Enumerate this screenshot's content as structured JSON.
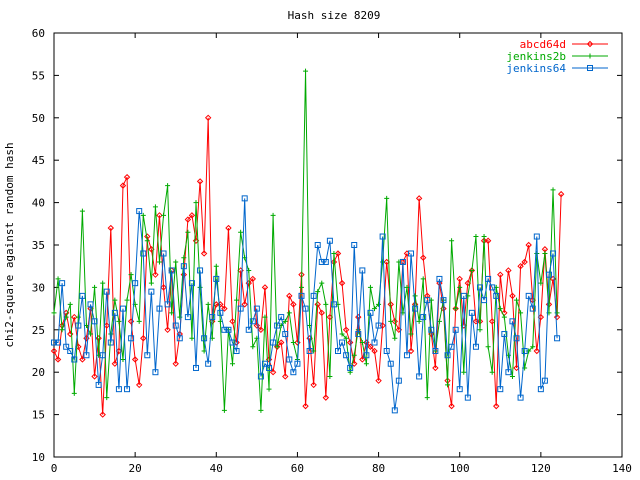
{
  "chart_data": {
    "type": "line",
    "title": "Hash size 8209",
    "xlabel": "",
    "ylabel": "chi2-square against random hash",
    "xlim": [
      0,
      140
    ],
    "ylim": [
      10,
      60
    ],
    "x_ticks": [
      0,
      20,
      40,
      60,
      80,
      100,
      120,
      140
    ],
    "y_ticks": [
      10,
      15,
      20,
      25,
      30,
      35,
      40,
      45,
      50,
      55,
      60
    ],
    "grid": false,
    "legend_position": "top-right",
    "series": [
      {
        "name": "abcd64d",
        "color": "#ff0000",
        "marker": "diamond",
        "values": [
          22.5,
          21.5,
          25.5,
          27.0,
          24.5,
          26.5,
          23.0,
          21.5,
          24.0,
          27.5,
          19.5,
          24.0,
          15.0,
          25.5,
          37.0,
          21.0,
          22.5,
          42.0,
          43.0,
          26.0,
          21.5,
          18.5,
          24.0,
          36.0,
          34.5,
          31.5,
          38.5,
          30.0,
          25.0,
          32.0,
          21.0,
          24.5,
          31.5,
          38.0,
          38.5,
          35.5,
          42.5,
          34.0,
          50.0,
          26.0,
          28.0,
          28.0,
          27.5,
          37.0,
          26.0,
          23.5,
          32.0,
          28.0,
          30.5,
          31.0,
          25.5,
          25.0,
          30.0,
          21.5,
          20.0,
          23.0,
          23.5,
          19.5,
          29.0,
          28.0,
          23.5,
          31.5,
          16.0,
          24.0,
          18.5,
          28.0,
          27.0,
          17.0,
          26.5,
          33.0,
          34.0,
          30.5,
          25.0,
          23.5,
          21.0,
          26.5,
          21.5,
          23.5,
          23.0,
          22.5,
          19.0,
          25.5,
          33.0,
          28.0,
          26.0,
          25.0,
          33.0,
          34.0,
          22.5,
          28.0,
          40.5,
          33.5,
          29.0,
          24.5,
          20.5,
          30.5,
          27.5,
          19.0,
          16.0,
          27.5,
          31.0,
          25.5,
          30.5,
          32.0,
          26.0,
          26.0,
          35.5,
          35.5,
          26.0,
          16.0,
          31.5,
          27.0,
          32.0,
          29.0,
          20.5,
          32.5,
          33.0,
          35.0,
          28.5,
          22.5,
          26.5,
          34.5,
          28.0,
          31.0,
          26.5,
          41.0
        ]
      },
      {
        "name": "jenkins2b",
        "color": "#00aa00",
        "marker": "plus",
        "values": [
          27.0,
          31.0,
          25.0,
          26.5,
          28.0,
          17.5,
          26.5,
          39.0,
          25.5,
          24.5,
          30.0,
          22.0,
          30.5,
          17.0,
          24.5,
          28.5,
          26.0,
          21.5,
          28.5,
          31.5,
          28.0,
          26.0,
          38.5,
          35.5,
          30.5,
          39.5,
          33.0,
          38.5,
          42.0,
          27.0,
          33.0,
          26.5,
          33.5,
          36.5,
          24.0,
          40.0,
          30.0,
          22.5,
          28.0,
          24.0,
          32.5,
          26.0,
          15.5,
          25.0,
          21.0,
          28.5,
          36.5,
          33.5,
          32.0,
          23.0,
          24.0,
          15.5,
          26.5,
          18.0,
          38.5,
          23.0,
          25.5,
          26.0,
          27.0,
          23.5,
          21.5,
          30.0,
          55.5,
          25.5,
          22.5,
          29.5,
          30.5,
          28.0,
          19.5,
          34.0,
          28.0,
          24.5,
          24.0,
          20.0,
          22.0,
          25.0,
          23.5,
          21.0,
          30.0,
          27.5,
          28.0,
          33.0,
          40.5,
          26.0,
          24.0,
          33.0,
          27.0,
          30.0,
          24.5,
          29.0,
          26.0,
          31.0,
          17.0,
          28.5,
          22.5,
          26.0,
          28.5,
          18.5,
          35.5,
          27.5,
          30.0,
          20.0,
          29.0,
          32.0,
          36.0,
          25.0,
          36.0,
          23.0,
          20.0,
          30.0,
          27.5,
          26.5,
          22.0,
          19.5,
          28.5,
          27.0,
          20.5,
          22.5,
          23.0,
          34.0,
          30.5,
          34.0,
          27.0,
          41.5,
          27.0
        ]
      },
      {
        "name": "jenkins64",
        "color": "#0066cc",
        "marker": "square",
        "values": [
          23.5,
          23.5,
          30.5,
          23.0,
          22.5,
          21.5,
          25.5,
          29.0,
          22.0,
          28.0,
          26.0,
          18.5,
          22.0,
          29.5,
          23.5,
          27.0,
          18.0,
          27.5,
          18.0,
          24.0,
          30.5,
          39.0,
          34.0,
          22.0,
          29.5,
          20.0,
          27.5,
          34.0,
          28.0,
          32.0,
          25.5,
          24.0,
          32.5,
          26.5,
          30.5,
          20.5,
          32.0,
          24.0,
          21.0,
          26.5,
          31.0,
          27.0,
          25.0,
          25.0,
          23.5,
          22.5,
          27.5,
          40.5,
          25.0,
          26.0,
          27.5,
          19.5,
          21.0,
          20.5,
          23.5,
          25.5,
          26.5,
          24.5,
          21.5,
          20.0,
          21.0,
          29.0,
          27.5,
          22.5,
          29.0,
          35.0,
          33.0,
          33.0,
          35.5,
          28.0,
          22.5,
          23.5,
          22.0,
          20.5,
          35.0,
          24.5,
          32.0,
          22.0,
          27.0,
          23.5,
          25.5,
          36.0,
          22.5,
          21.0,
          15.5,
          19.0,
          33.0,
          22.0,
          34.0,
          27.5,
          19.5,
          26.5,
          28.5,
          25.0,
          22.5,
          31.0,
          28.5,
          22.0,
          23.0,
          25.0,
          18.0,
          29.0,
          17.0,
          27.0,
          23.0,
          30.0,
          28.5,
          31.0,
          30.0,
          29.0,
          18.0,
          24.5,
          20.0,
          26.0,
          24.0,
          17.0,
          22.5,
          29.0,
          27.5,
          36.0,
          18.0,
          19.0,
          31.5,
          34.0,
          24.0
        ]
      }
    ]
  }
}
